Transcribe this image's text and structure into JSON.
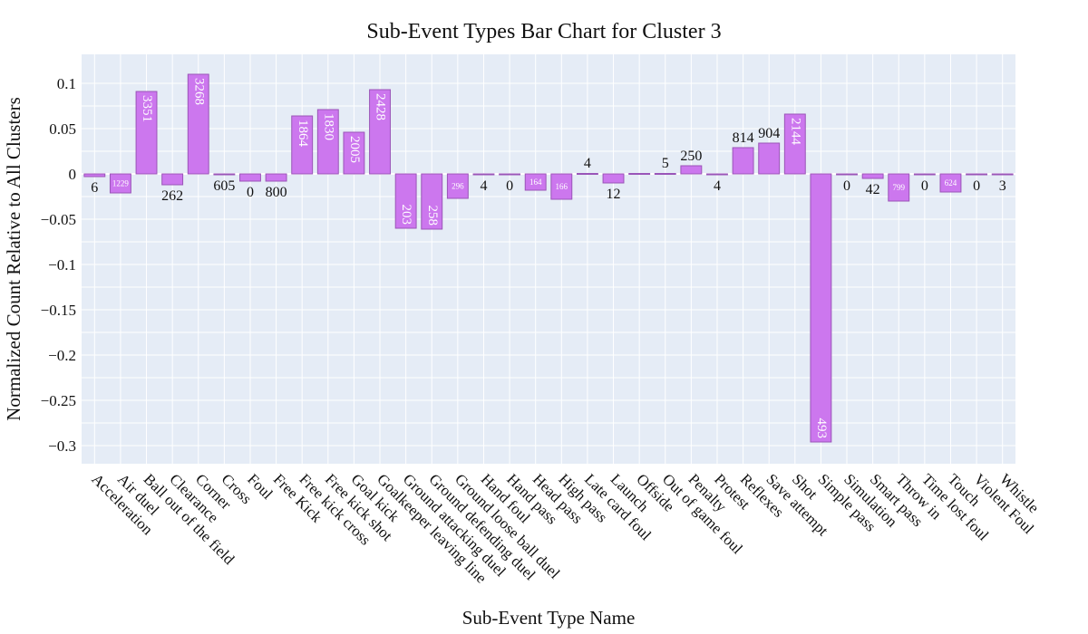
{
  "chart_data": {
    "type": "bar",
    "title": "Sub-Event Types Bar Chart for Cluster 3",
    "xlabel": "Sub-Event Type Name",
    "ylabel": "Normalized Count Relative to All Clusters",
    "ylim": [
      -0.32,
      0.132
    ],
    "yticks": [
      0.1,
      0.05,
      0,
      -0.05,
      -0.1,
      -0.15,
      -0.2,
      -0.25,
      -0.3
    ],
    "ytick_labels": [
      "0.1",
      "0.05",
      "0",
      "−0.05",
      "−0.1",
      "−0.15",
      "−0.2",
      "−0.25",
      "−0.3"
    ],
    "grid": true,
    "bar_color": "#cc77ee",
    "bar_edge_color": "#9a55b8",
    "plot_bg_color": "#e5ecf6",
    "categories": [
      "Acceleration",
      "Air duel",
      "Ball out of the field",
      "Clearance",
      "Corner",
      "Cross",
      "Foul",
      "Free Kick",
      "Free kick cross",
      "Free kick shot",
      "Goal kick",
      "Goalkeeper leaving line",
      "Ground attacking duel",
      "Ground defending duel",
      "Ground loose ball duel",
      "Hand foul",
      "Hand pass",
      "Head pass",
      "High pass",
      "Late card foul",
      "Launch",
      "Offside",
      "Out of game foul",
      "Penalty",
      "Protest",
      "Reflexes",
      "Save attempt",
      "Shot",
      "Simple pass",
      "Simulation",
      "Smart pass",
      "Throw in",
      "Time lost foul",
      "Touch",
      "Violent Foul",
      "Whistle"
    ],
    "values": [
      -0.003,
      -0.021,
      0.091,
      -0.012,
      0.11,
      -0.001,
      -0.008,
      -0.008,
      0.064,
      0.071,
      0.046,
      0.093,
      -0.06,
      -0.061,
      -0.027,
      -0.001,
      -0.001,
      -0.018,
      -0.028,
      0.0,
      -0.01,
      0.0,
      0.0,
      0.009,
      -0.001,
      0.029,
      0.034,
      0.066,
      -0.296,
      -0.001,
      -0.005,
      -0.03,
      -0.001,
      -0.02,
      -0.001,
      -0.001
    ],
    "labels": [
      "6",
      "1229",
      "3351",
      "262",
      "3268",
      "605",
      "0",
      "800",
      "1864",
      "1830",
      "2005",
      "2428",
      "203",
      "258",
      "296",
      "4",
      "0",
      "164",
      "166",
      "4",
      "12",
      "",
      "5",
      "250",
      "4",
      "814",
      "904",
      "2144",
      "493",
      "0",
      "42",
      "799",
      "0",
      "624",
      "0",
      "3"
    ]
  }
}
